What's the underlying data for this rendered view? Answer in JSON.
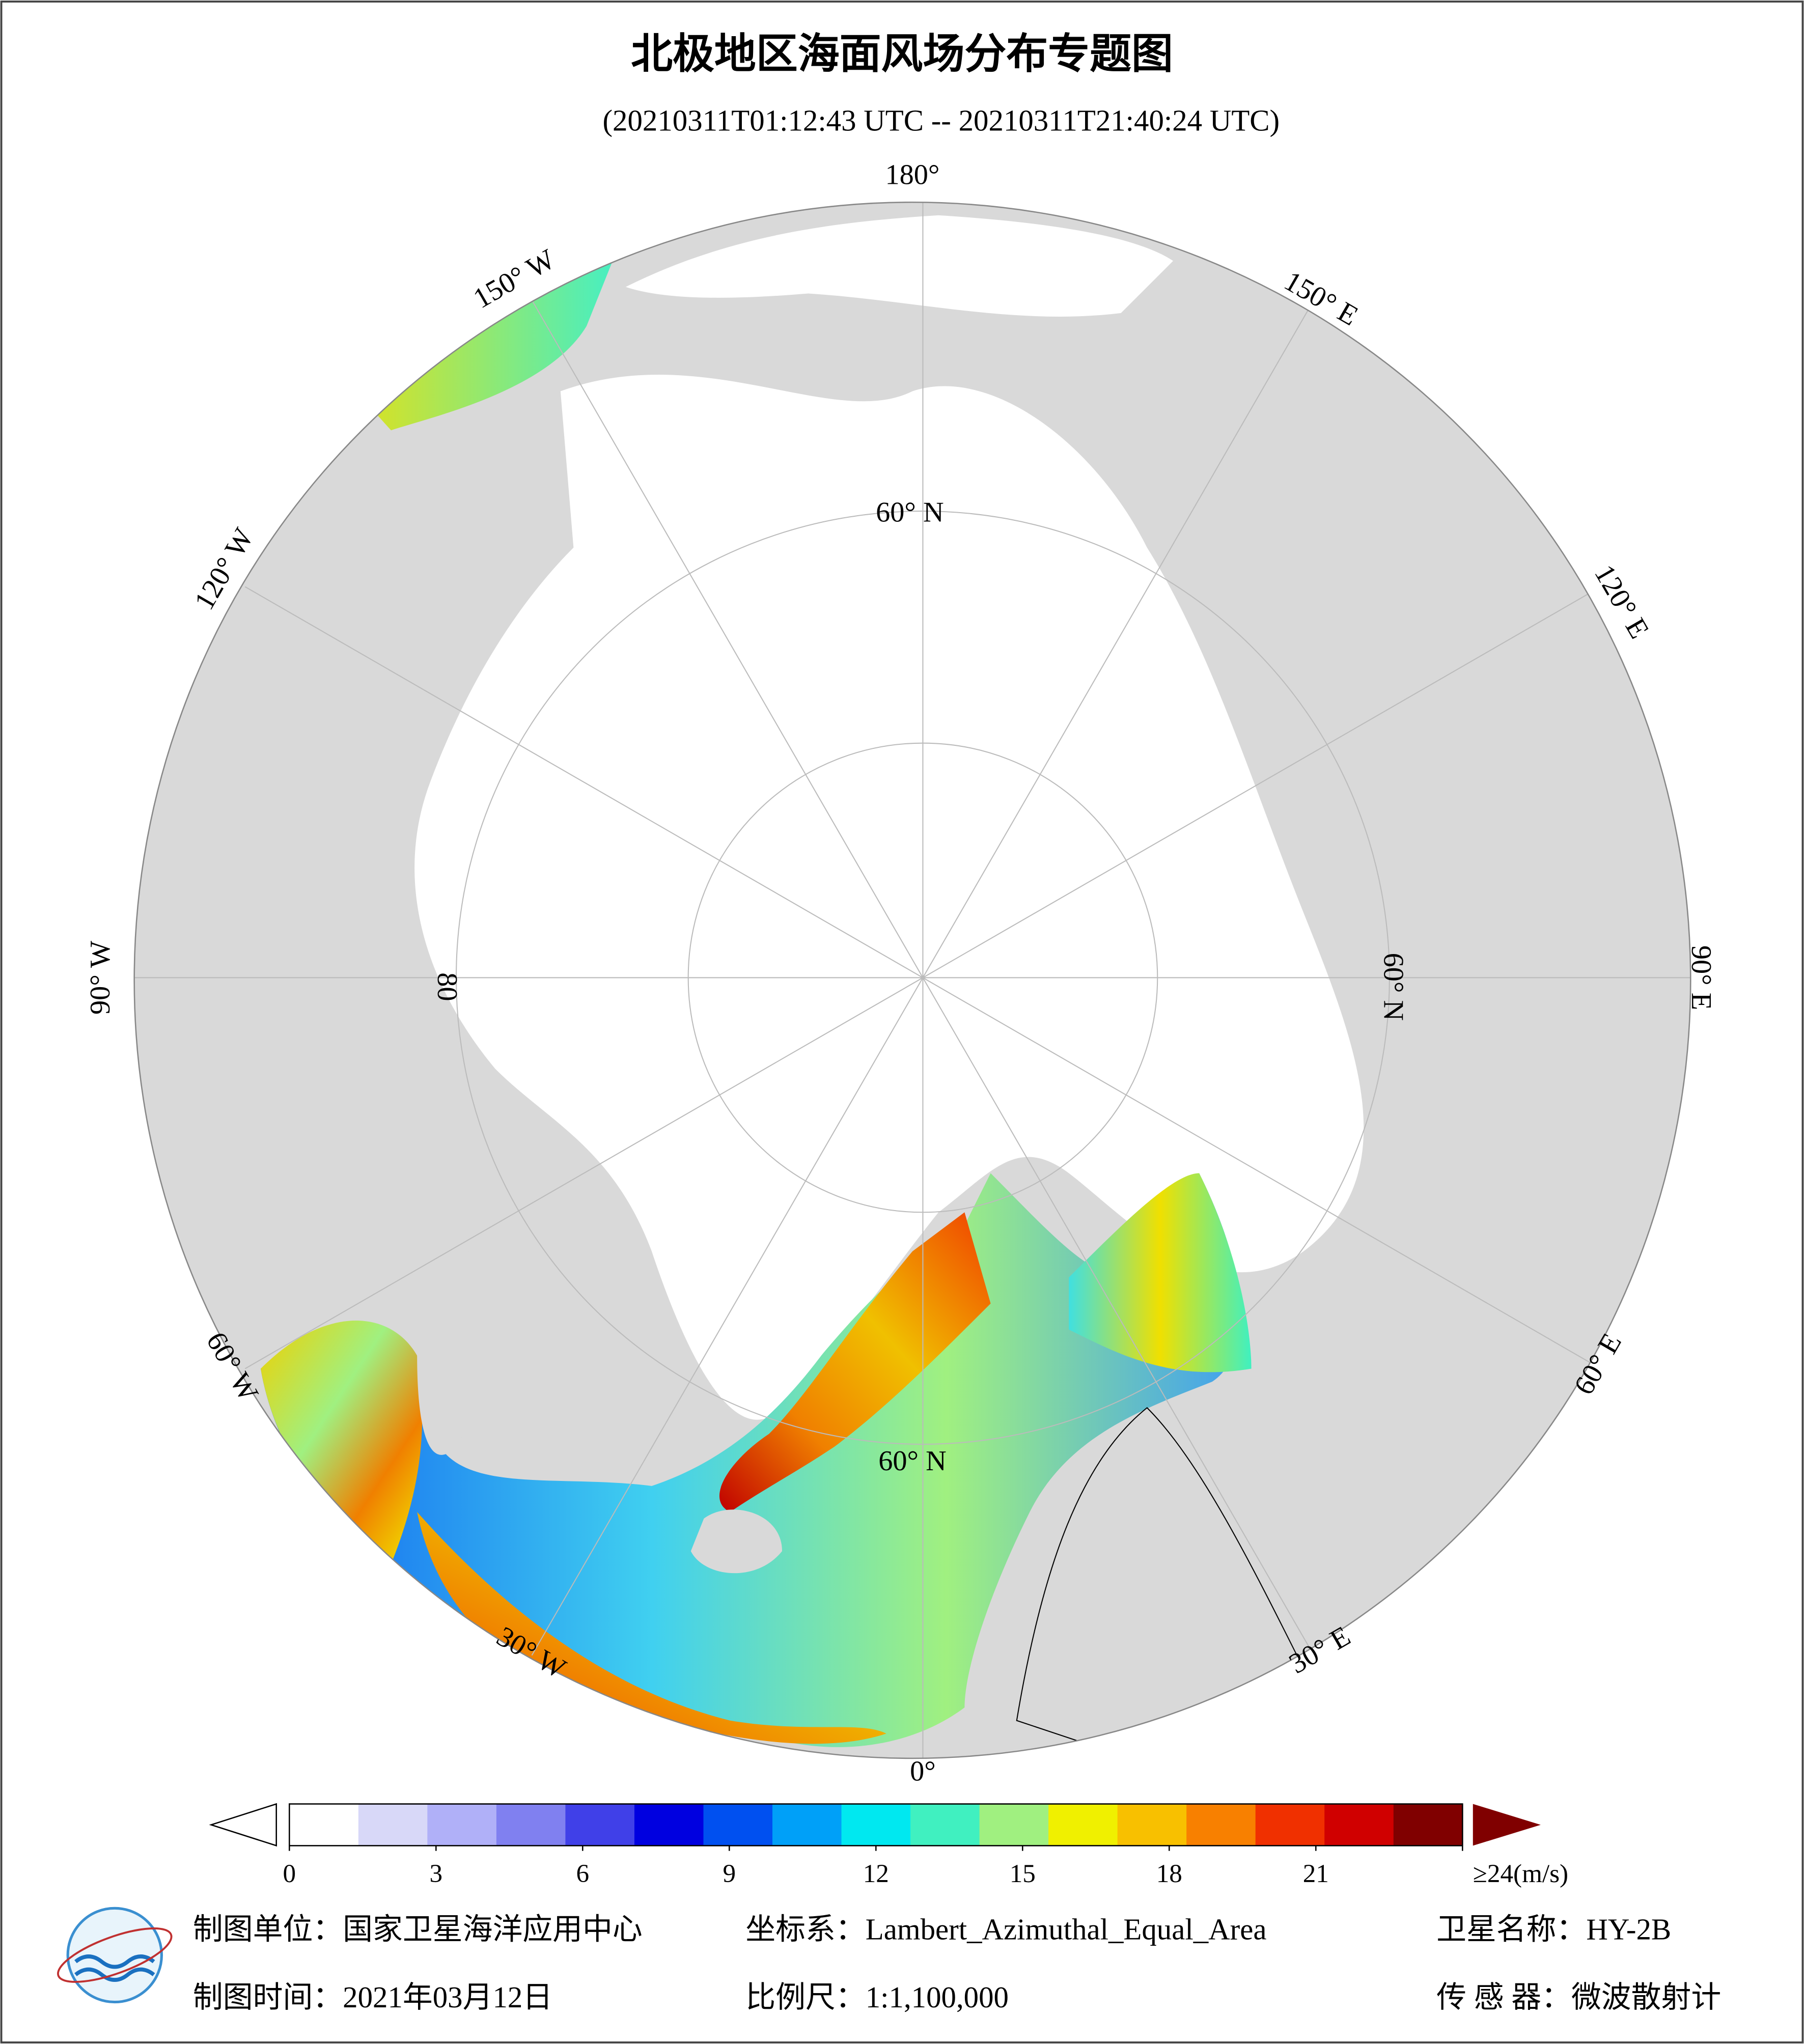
{
  "header": {
    "title": "北极地区海面风场分布专题图",
    "subtitle": "(20210311T01:12:43 UTC -- 20210311T21:40:24 UTC)"
  },
  "map": {
    "longitude_labels": [
      "180°",
      "150° E",
      "120° E",
      "90° E",
      "60° E",
      "30° E",
      "0°",
      "30° W",
      "60° W",
      "90° W",
      "120° W",
      "150° W"
    ],
    "latitude_labels": [
      "60° N",
      "60° N",
      "60° N",
      "80"
    ]
  },
  "colorbar": {
    "range": [
      0,
      24
    ],
    "ticks": [
      0,
      3,
      6,
      9,
      12,
      15,
      18,
      21,
      {
        "value": 24,
        "label": "≥24(m/s)"
      }
    ],
    "colors": [
      "#ffffff",
      "#d8d8f8",
      "#b0b0f8",
      "#8080f0",
      "#4040e8",
      "#0000e0",
      "#0050f0",
      "#00a0f8",
      "#00e8f0",
      "#40f0c0",
      "#a0f080",
      "#f0f000",
      "#f8c000",
      "#f88000",
      "#f03000",
      "#d00000",
      "#800000"
    ]
  },
  "footer": {
    "unit": "制图单位：国家卫星海洋应用中心",
    "date": "制图时间：2021年03月12日",
    "crs": "坐标系：Lambert_Azimuthal_Equal_Area",
    "scale": "比例尺：1:1,100,000",
    "satellite": "卫星名称：HY-2B",
    "sensor": "传 感 器：微波散射计"
  }
}
